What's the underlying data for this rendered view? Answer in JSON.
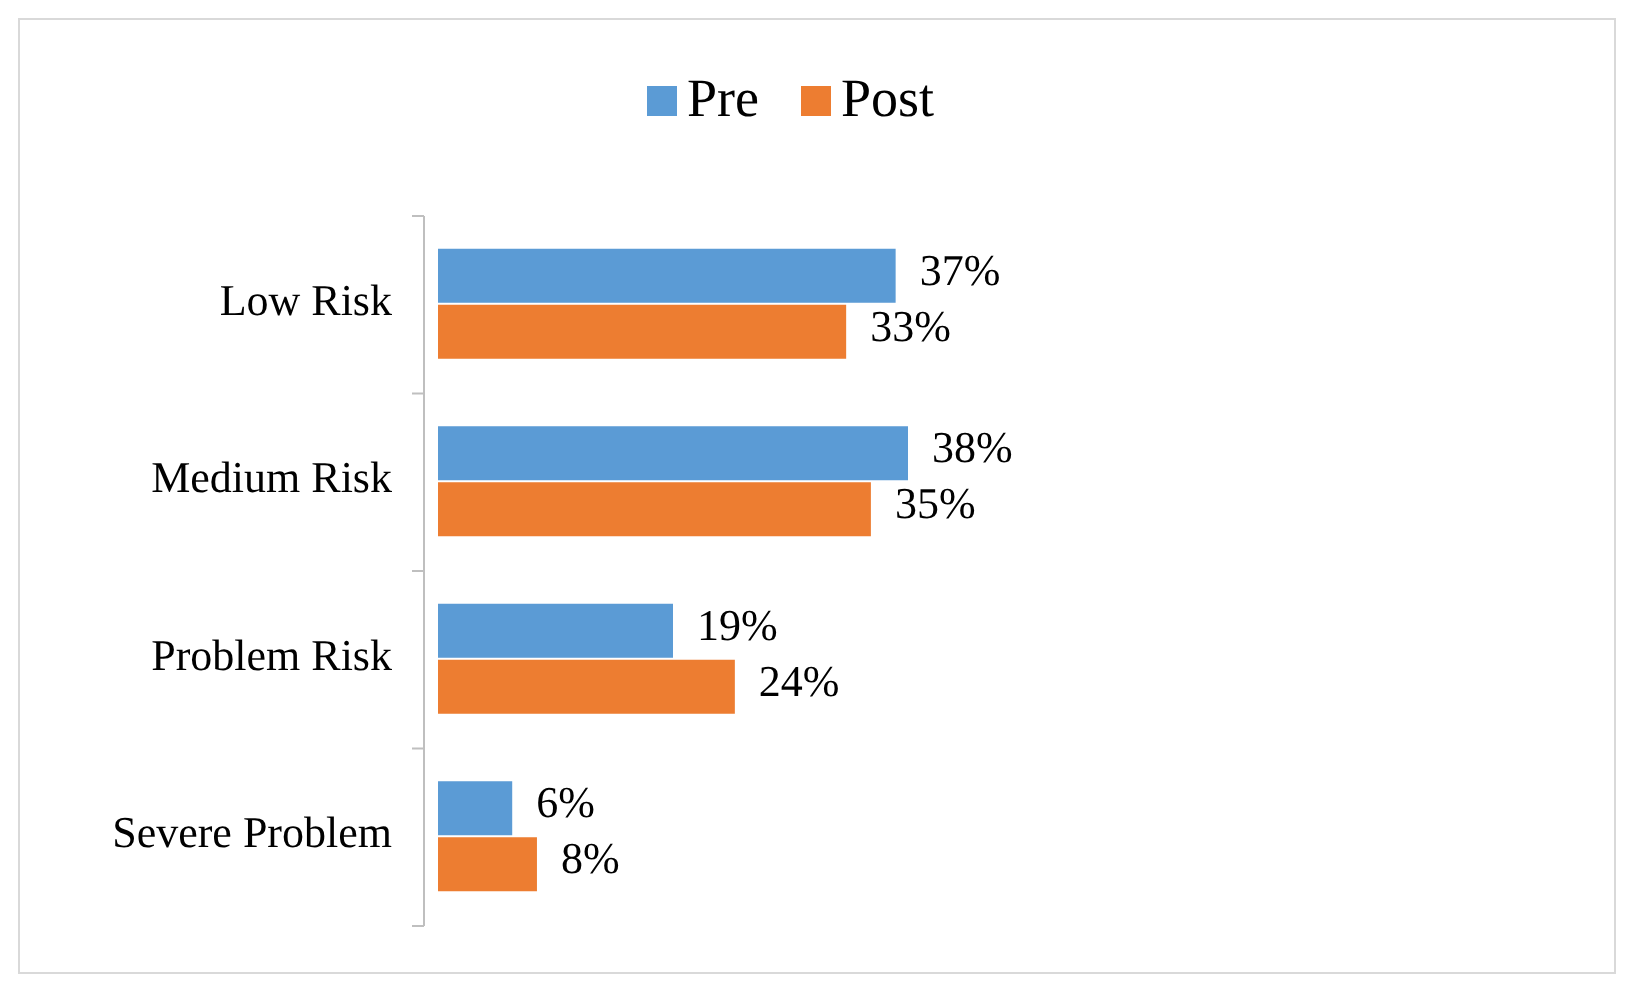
{
  "chart_data": {
    "type": "bar",
    "orientation": "horizontal",
    "categories": [
      "Low Risk",
      "Medium Risk",
      "Problem Risk",
      "Severe Problem"
    ],
    "series": [
      {
        "name": "Pre",
        "color": "#5b9bd5",
        "values": [
          37,
          38,
          19,
          6
        ],
        "value_labels": [
          "37%",
          "38%",
          "19%",
          "6%"
        ]
      },
      {
        "name": "Post",
        "color": "#ed7d31",
        "values": [
          33,
          35,
          24,
          8
        ],
        "value_labels": [
          "33%",
          "35%",
          "24%",
          "8%"
        ]
      }
    ],
    "legend": "top"
  }
}
